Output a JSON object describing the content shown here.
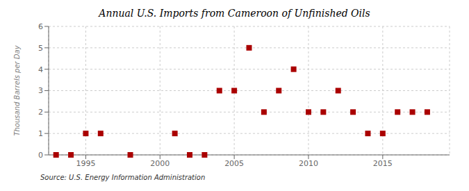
{
  "chart_data": {
    "type": "scatter",
    "title": "Annual U.S. Imports from Cameroon of Unfinished Oils",
    "ylabel": "Thousand Barrels per Day",
    "source": "Source: U.S. Energy Information Administration",
    "x": [
      1993,
      1994,
      1995,
      1996,
      1998,
      2001,
      2002,
      2003,
      2004,
      2005,
      2006,
      2007,
      2008,
      2009,
      2010,
      2011,
      2012,
      2013,
      2014,
      2015,
      2016,
      2017,
      2018
    ],
    "values": [
      0,
      0,
      1,
      1,
      0,
      1,
      0,
      0,
      3,
      3,
      5,
      2,
      3,
      4,
      2,
      2,
      3,
      2,
      1,
      1,
      2,
      2,
      2
    ],
    "xlim": [
      1992.5,
      2019.5
    ],
    "ylim": [
      0,
      6
    ],
    "xticks": [
      1995,
      2000,
      2005,
      2010,
      2015
    ],
    "yticks": [
      0,
      1,
      2,
      3,
      4,
      5,
      6
    ],
    "color": "#aa0000",
    "marker": "square",
    "grid": true
  }
}
